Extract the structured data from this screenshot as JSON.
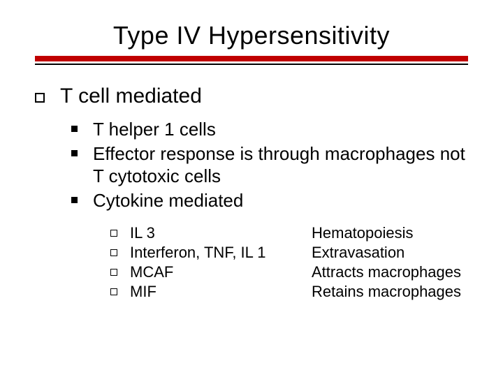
{
  "title": "Type IV Hypersensitivity",
  "colors": {
    "accent_bar": "#c00000",
    "thin_bar": "#000000",
    "text": "#000000",
    "background": "#ffffff"
  },
  "typography": {
    "title_fontsize": 36,
    "level1_fontsize": 30,
    "level2_fontsize": 26,
    "level3_fontsize": 22,
    "font_family": "Verdana"
  },
  "level1": {
    "text": "T cell mediated"
  },
  "level2": [
    {
      "text": "T helper 1 cells"
    },
    {
      "text": "Effector response is through macrophages not T cytotoxic cells"
    },
    {
      "text": "Cytokine mediated"
    }
  ],
  "level3": [
    {
      "left": "IL 3",
      "right": "Hematopoiesis"
    },
    {
      "left": "Interferon, TNF, IL 1",
      "right": "Extravasation"
    },
    {
      "left": "MCAF",
      "right": "Attracts macrophages"
    },
    {
      "left": "MIF",
      "right": "Retains macrophages"
    }
  ]
}
